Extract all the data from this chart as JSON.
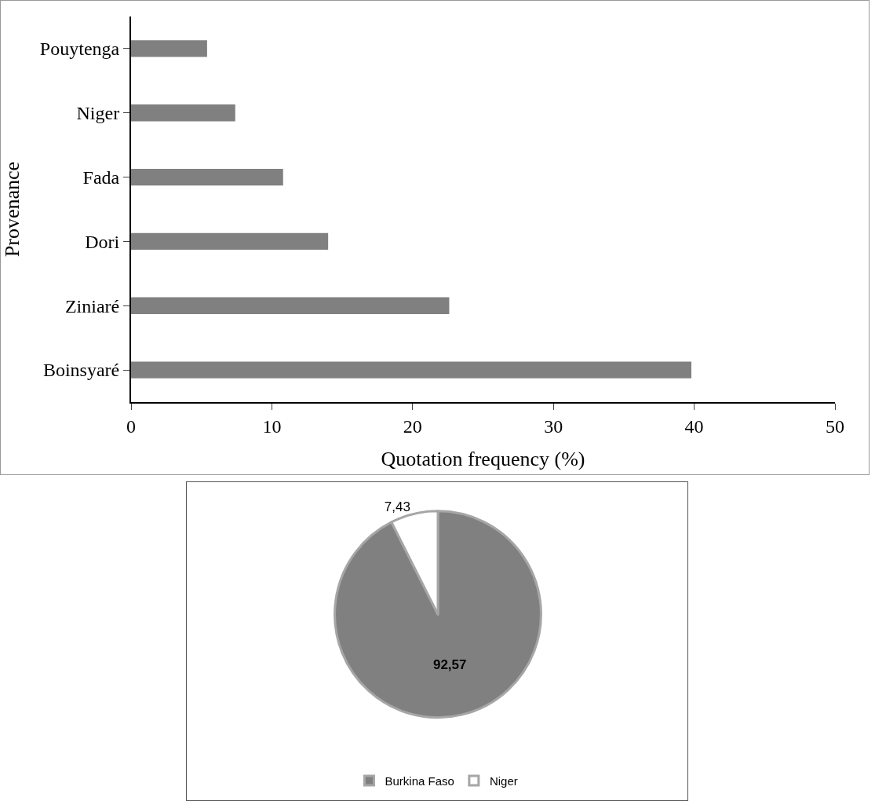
{
  "chart_data": [
    {
      "type": "bar",
      "orientation": "horizontal",
      "categories": [
        "Pouytenga",
        "Niger",
        "Fada",
        "Dori",
        "Ziniaré",
        "Boinsyaré"
      ],
      "values": [
        5.4,
        7.4,
        10.8,
        14.0,
        22.6,
        39.8
      ],
      "color": "#808080",
      "xlabel": "Quotation frequency (%)",
      "ylabel": "Provenance",
      "xlim": [
        0,
        50
      ],
      "xticks": [
        0,
        10,
        20,
        30,
        40,
        50
      ],
      "grid": false,
      "legend": false
    },
    {
      "type": "pie",
      "categories": [
        "Burkina Faso",
        "Niger"
      ],
      "values": [
        92.57,
        7.43
      ],
      "colors": [
        "#808080",
        "#ffffff"
      ],
      "value_labels": [
        "92,57",
        "7,43"
      ],
      "legend": "bottom"
    }
  ]
}
